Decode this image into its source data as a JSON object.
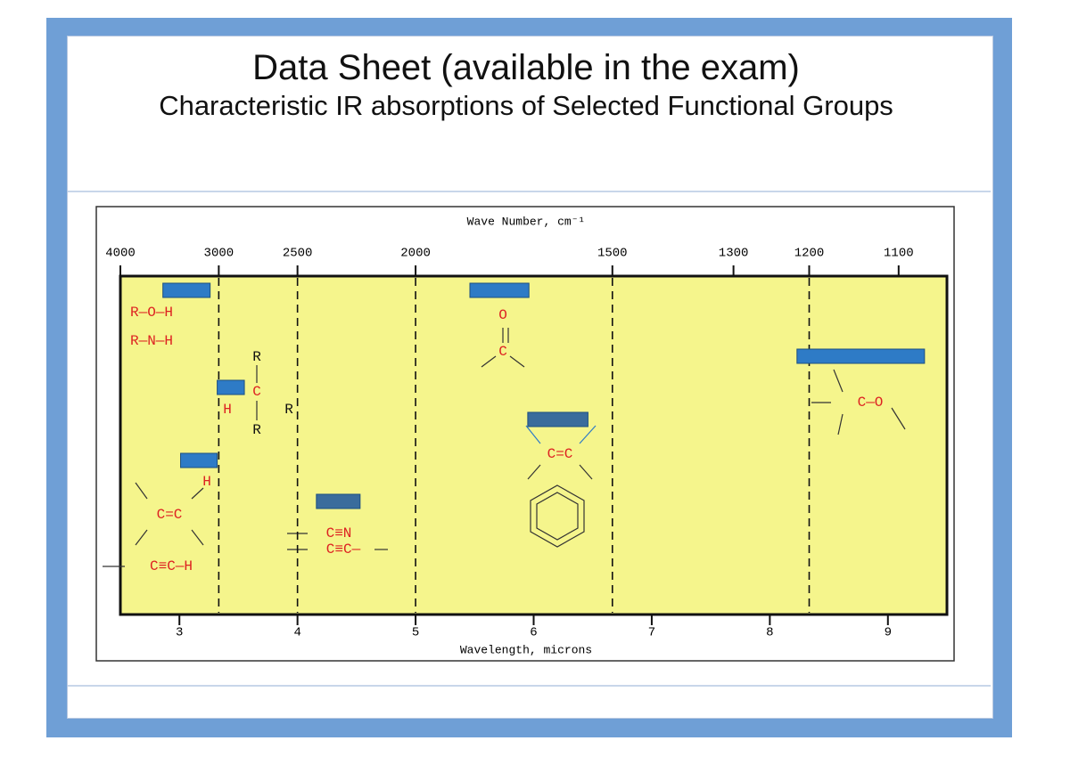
{
  "chart_data": {
    "type": "range",
    "title": "Data Sheet (available in the exam)",
    "subtitle": "Characteristic IR absorptions of Selected Functional Groups",
    "x2label": "Wave Number, cm⁻¹",
    "xlabel": "Wavelength, microns",
    "xlim": [
      2.5,
      9.5
    ],
    "xticks": [
      3,
      4,
      5,
      6,
      7,
      8,
      9
    ],
    "x2ticks": [
      4000,
      3000,
      2500,
      2000,
      1500,
      1300,
      1200,
      1100
    ],
    "x2grid": [
      3000,
      2500,
      2000,
      1500,
      1200
    ],
    "ranges": [
      [
        2.86,
        3.26
      ],
      [
        5.46,
        5.96
      ],
      [
        8.23,
        9.31
      ],
      [
        3.32,
        3.55
      ],
      [
        5.95,
        6.46
      ],
      [
        3.01,
        3.32
      ],
      [
        4.16,
        4.53
      ]
    ],
    "colors": [
      "#2e7bc6",
      "#2e7bc6",
      "#2e7bc6",
      "#2e7bc6",
      "#3a6c9c",
      "#2e7bc6",
      "#3a6c9c"
    ],
    "annotations": [
      "R—O—H",
      "R—N—H",
      "O",
      "C",
      "R",
      "C",
      "H",
      "R",
      "R",
      "H",
      "C=C",
      "C≡C—H",
      "C≡N",
      "C≡C—",
      "C=C",
      "C—O"
    ]
  }
}
